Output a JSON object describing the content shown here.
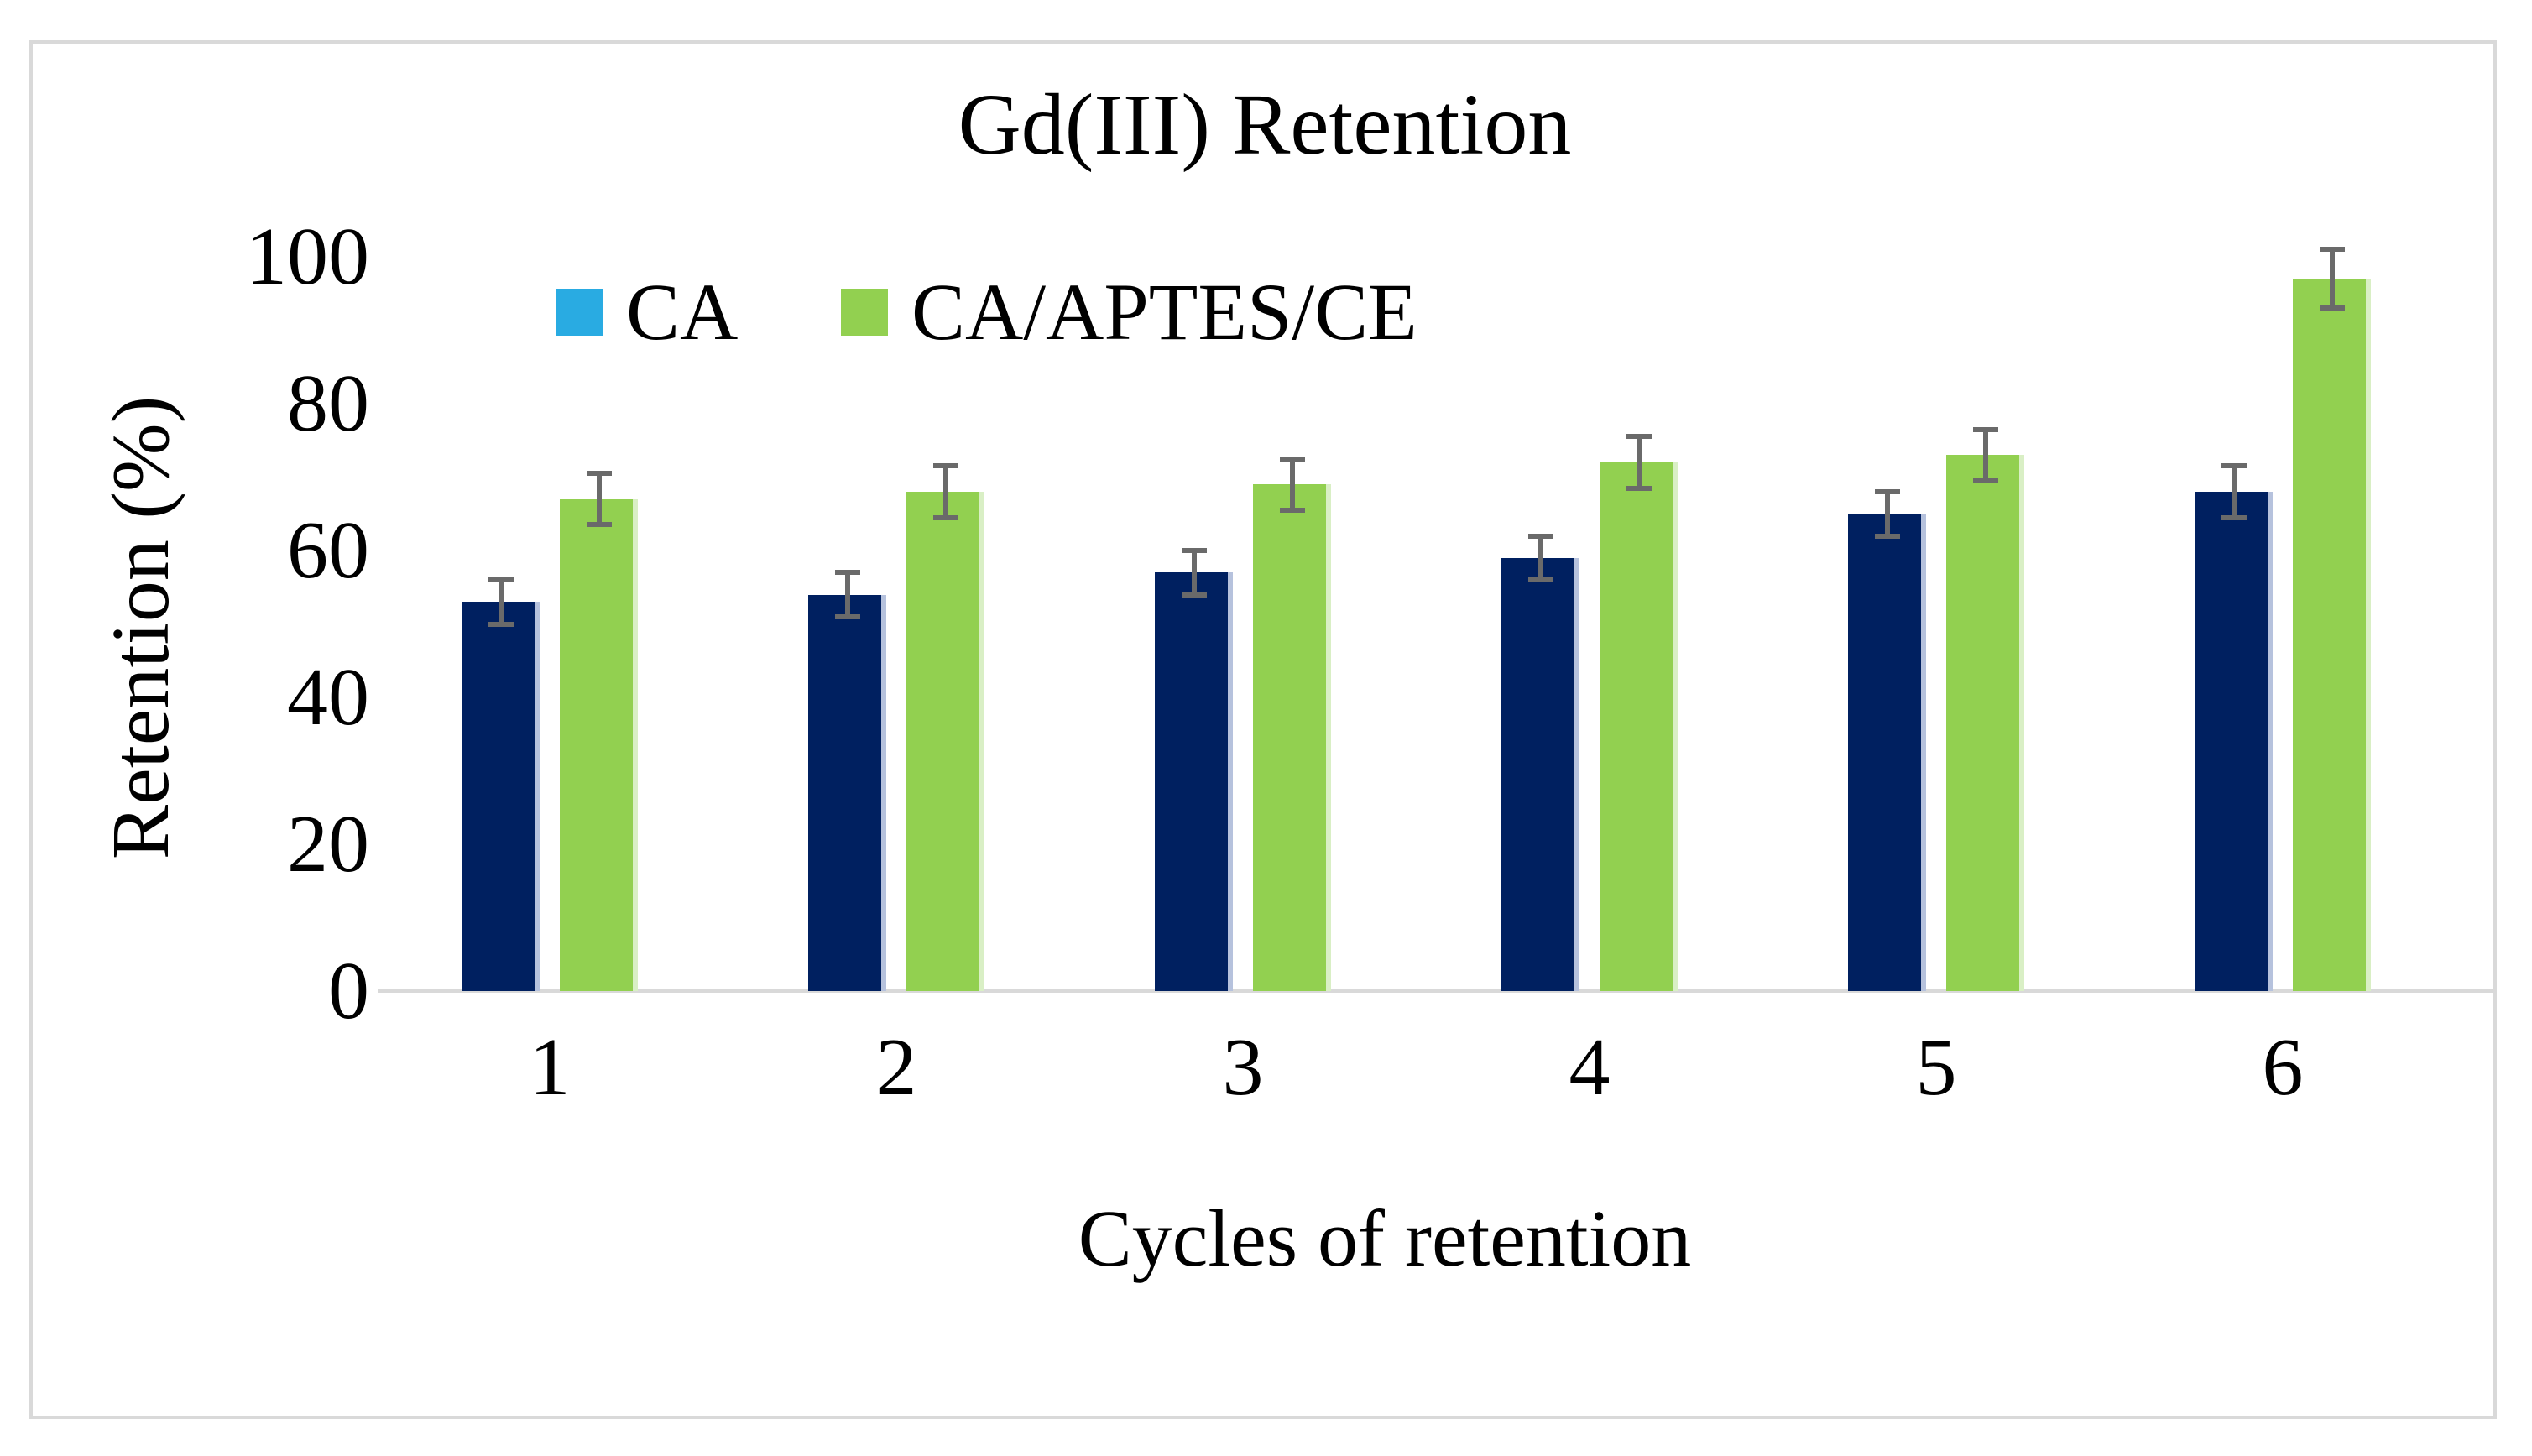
{
  "chart_data": {
    "type": "bar",
    "title": "Gd(III) Retention",
    "xlabel": "Cycles of retention",
    "ylabel": "Retention (%)",
    "categories": [
      "1",
      "2",
      "3",
      "4",
      "5",
      "6"
    ],
    "series": [
      {
        "name": "CA",
        "swatch_color": "#29ABE2",
        "bar_color": "#002060",
        "edge_color": "#b6c2dd",
        "values": [
          53,
          54,
          57,
          59,
          65,
          68
        ],
        "errors": [
          3,
          3,
          3,
          3,
          3,
          3.5
        ]
      },
      {
        "name": "CA/APTES/CE",
        "swatch_color": "#92D050",
        "bar_color": "#92D050",
        "edge_color": "#d9efc5",
        "values": [
          67,
          68,
          69,
          72,
          73,
          97
        ],
        "errors": [
          3.5,
          3.5,
          3.5,
          3.5,
          3.5,
          4
        ]
      }
    ],
    "ylim": [
      0,
      100
    ],
    "yticks": [
      0,
      20,
      40,
      60,
      80,
      100
    ],
    "grid": false,
    "legend_position": "inside-top-left",
    "error_bar_color": "#6a6a6a",
    "axis_line_color": "#d9d9d9",
    "border_color": "#d9d9d9",
    "background_color": "#ffffff"
  }
}
